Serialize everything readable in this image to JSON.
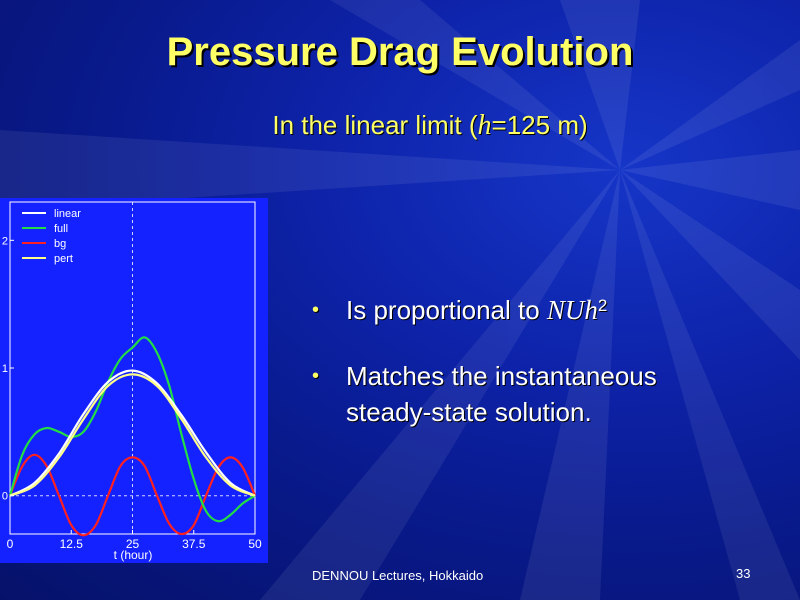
{
  "slide": {
    "title": "Pressure Drag Evolution",
    "subtitle_pre": "In the linear limit (",
    "subtitle_var": "h",
    "subtitle_post": "=125 m)",
    "footer": "DENNOU Lectures, Hokkaido",
    "page_number": "33",
    "accent_color": "#ffff66",
    "background_color": "#0a1e9c"
  },
  "bullets": [
    {
      "text": "Is proportional to ",
      "italic": "NUh",
      "sup": "2"
    },
    {
      "line1": "Matches the instantaneous",
      "line2": "steady-state solution."
    }
  ],
  "chart_data": {
    "type": "line",
    "xlabel": "t (hour)",
    "ylabel": "",
    "xlim": [
      0,
      50
    ],
    "ylim": [
      -0.3,
      2.3
    ],
    "x_ticks": [
      "0",
      "12.5",
      "25",
      "37.5",
      "50"
    ],
    "y_ticks": [
      "0",
      "1",
      "2"
    ],
    "vline_at": 25,
    "hline_at": 0,
    "legend": [
      "linear",
      "full",
      "bg",
      "pert"
    ],
    "legend_position": "top-left",
    "background_color": "#1422ff",
    "series": [
      {
        "name": "linear",
        "color": "#ffffff",
        "x": [
          0,
          5,
          10,
          15,
          20,
          25,
          30,
          35,
          40,
          45,
          50
        ],
        "y": [
          0,
          0.1,
          0.33,
          0.64,
          0.89,
          0.98,
          0.88,
          0.63,
          0.34,
          0.1,
          0
        ]
      },
      {
        "name": "full",
        "color": "#22dd44",
        "x": [
          0,
          2.5,
          5,
          7.5,
          10,
          12.5,
          15,
          17.5,
          20,
          22.5,
          25,
          27.5,
          30,
          32.5,
          35,
          37.5,
          40,
          42.5,
          45,
          47.5,
          50
        ],
        "y": [
          0,
          0.32,
          0.48,
          0.53,
          0.5,
          0.46,
          0.5,
          0.66,
          0.89,
          1.07,
          1.16,
          1.24,
          1.12,
          0.86,
          0.48,
          0.13,
          -0.12,
          -0.2,
          -0.15,
          -0.06,
          0
        ]
      },
      {
        "name": "bg",
        "color": "#ff2020",
        "x": [
          0,
          2.5,
          5,
          7.5,
          10,
          12.5,
          15,
          17.5,
          20,
          22.5,
          25,
          27.5,
          30,
          32.5,
          35,
          37.5,
          40,
          42.5,
          45,
          47.5,
          50
        ],
        "y": [
          0,
          0.23,
          0.32,
          0.23,
          0,
          -0.23,
          -0.31,
          -0.23,
          0,
          0.23,
          0.3,
          0.23,
          0,
          -0.22,
          -0.3,
          -0.23,
          0,
          0.22,
          0.3,
          0.22,
          0
        ]
      },
      {
        "name": "pert",
        "color": "#ffff88",
        "x": [
          0,
          5,
          10,
          15,
          20,
          25,
          30,
          35,
          40,
          45,
          50
        ],
        "y": [
          0,
          0.08,
          0.3,
          0.6,
          0.86,
          0.95,
          0.86,
          0.6,
          0.3,
          0.08,
          0
        ]
      }
    ]
  }
}
